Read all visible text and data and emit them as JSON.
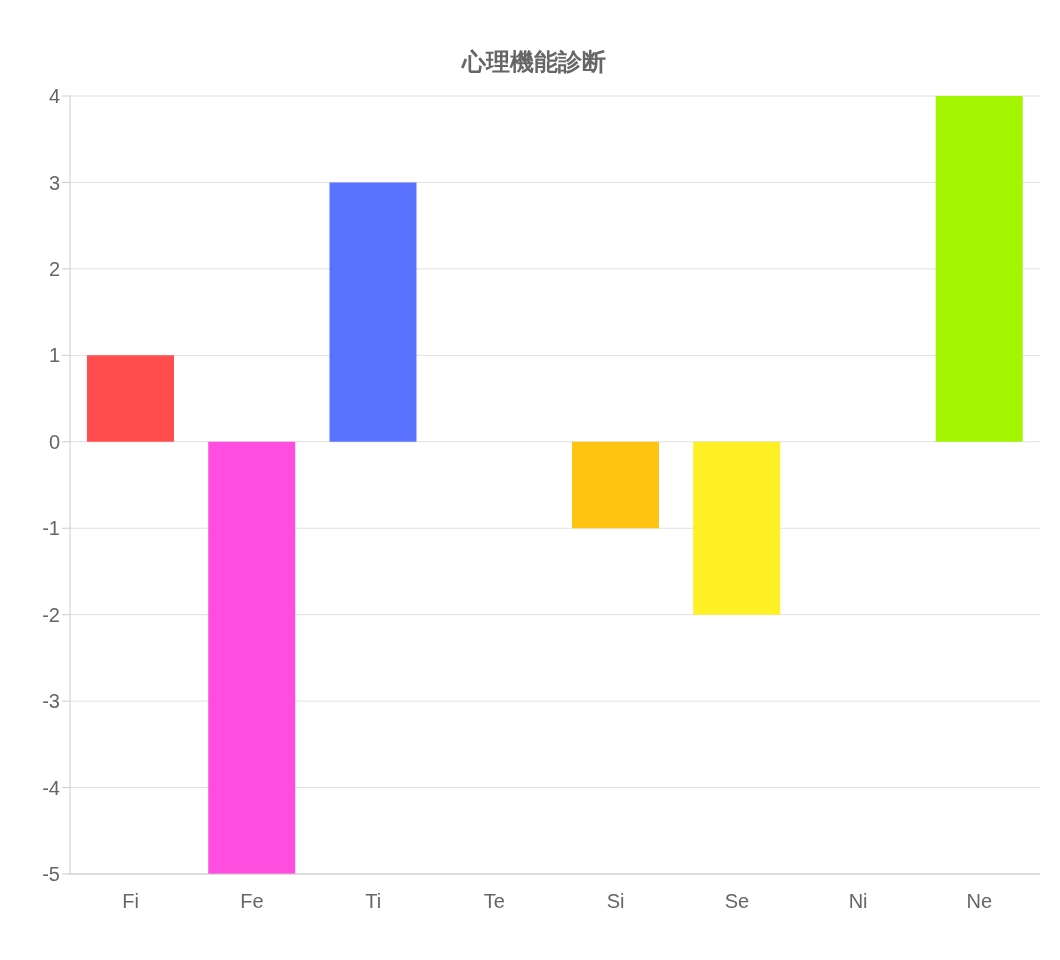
{
  "chart_data": {
    "type": "bar",
    "title": "心理機能診断",
    "categories": [
      "Fi",
      "Fe",
      "Ti",
      "Te",
      "Si",
      "Se",
      "Ni",
      "Ne"
    ],
    "values": [
      1,
      -5,
      3,
      0,
      -1,
      -2,
      0,
      4
    ],
    "colors": [
      "#ff4d4d",
      "#ff4de0",
      "#5a73ff",
      null,
      "#ffc312",
      "#fff025",
      null,
      "#a3f500"
    ],
    "ylim": [
      -5,
      4
    ],
    "yticks": [
      -5,
      -4,
      -3,
      -2,
      -1,
      0,
      1,
      2,
      3,
      4
    ],
    "grid": "y",
    "legend": false
  }
}
